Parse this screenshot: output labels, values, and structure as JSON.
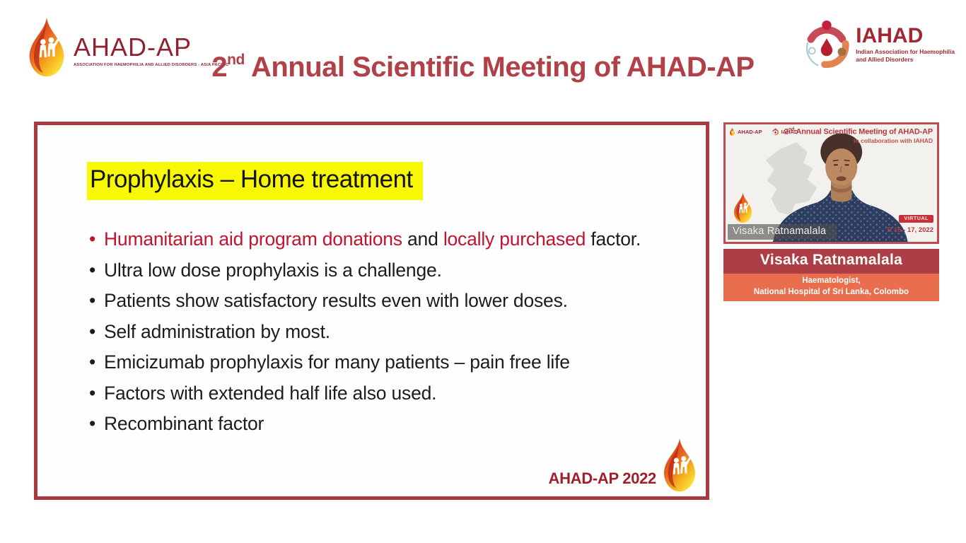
{
  "header": {
    "left_logo": {
      "name": "AHAD-AP",
      "caption": "ASSOCIATION FOR HAEMOPHILIA AND ALLIED DISORDERS - ASIA PACIFIC",
      "icon": "flame-drop-with-figures-icon"
    },
    "title": {
      "num": "2",
      "sup": "nd",
      "rest": " Annual Scientific Meeting of AHAD-AP"
    },
    "title_color": "#b04148",
    "right_logo": {
      "name": "IAHAD",
      "caption_line1": "Indian Association for Haemophilia",
      "caption_line2": "and Allied Disorders",
      "icon": "circular-people-drop-icon"
    }
  },
  "slide": {
    "title": "Prophylaxis – Home treatment",
    "title_highlight_color": "#f8f802",
    "border_color": "#a93a42",
    "accent_red": "#c4122e",
    "text_color": "#1c1c1c",
    "bullets": [
      {
        "marker_color": "#c4122e",
        "segments": [
          {
            "text": "Humanitarian aid program donations",
            "color": "#c4122e"
          },
          {
            "text": " and ",
            "color": "#1c1c1c"
          },
          {
            "text": "locally purchased",
            "color": "#c4122e"
          },
          {
            "text": " factor.",
            "color": "#1c1c1c"
          }
        ]
      },
      {
        "marker_color": "#1c1c1c",
        "segments": [
          {
            "text": "Ultra low dose prophylaxis  is a challenge.",
            "color": "#1c1c1c"
          }
        ]
      },
      {
        "marker_color": "#1c1c1c",
        "segments": [
          {
            "text": "Patients show satisfactory results even with lower doses.",
            "color": "#1c1c1c"
          }
        ]
      },
      {
        "marker_color": "#1c1c1c",
        "segments": [
          {
            "text": "Self administration by most.",
            "color": "#1c1c1c"
          }
        ]
      },
      {
        "marker_color": "#1c1c1c",
        "segments": [
          {
            "text": "Emicizumab prophylaxis for many patients – pain free life",
            "color": "#1c1c1c"
          }
        ]
      },
      {
        "marker_color": "#1c1c1c",
        "segments": [
          {
            "text": "Factors with extended half life also used.",
            "color": "#1c1c1c"
          }
        ]
      },
      {
        "marker_color": "#1c1c1c",
        "segments": [
          {
            "text": "Recombinant factor",
            "color": "#1c1c1c"
          }
        ]
      }
    ],
    "footer_text": "AHAD-AP 2022"
  },
  "video": {
    "border_color": "#c14b52",
    "logos": {
      "left1": "AHAD-AP",
      "left2": "IAHAD"
    },
    "overlay_title": {
      "num": "2",
      "sup": "nd",
      "rest": " Annual Scientific Meeting of AHAD-AP"
    },
    "overlay_subtitle": "in collaboration with IAHAD",
    "name_tag": "Visaka Ratnamalala",
    "badge": "VIRTUAL",
    "date_text": "R 16 - 17, 2022"
  },
  "speaker_banner": {
    "name": "Visaka Ratnamalala",
    "name_bg": "#ae3e46",
    "role_line1": "Haematologist,",
    "role_line2": "National Hospital of Sri Lanka, Colombo",
    "role_bg": "#e86e4d"
  }
}
